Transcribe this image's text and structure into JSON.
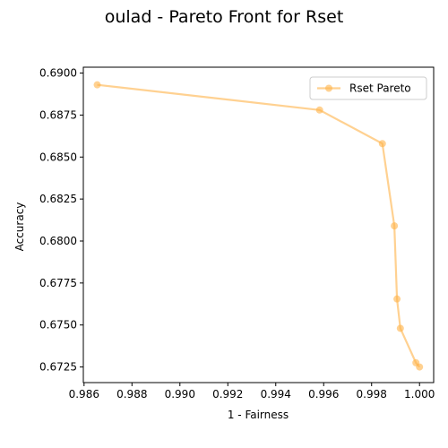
{
  "chart_data": {
    "type": "line",
    "title": "oulad - Pareto Front for Rset",
    "xlabel": "1 - Fairness",
    "ylabel": "Accuracy",
    "xlim": [
      0.98597,
      1.00059
    ],
    "ylim": [
      0.67157,
      0.69035
    ],
    "xticks": [
      0.986,
      0.988,
      0.99,
      0.992,
      0.994,
      0.996,
      0.998,
      1.0
    ],
    "xtick_labels": [
      "0.986",
      "0.988",
      "0.990",
      "0.992",
      "0.994",
      "0.996",
      "0.998",
      "1.000"
    ],
    "yticks": [
      0.6725,
      0.675,
      0.6775,
      0.68,
      0.6825,
      0.685,
      0.6875,
      0.69
    ],
    "ytick_labels": [
      "0.6725",
      "0.6750",
      "0.6775",
      "0.6800",
      "0.6825",
      "0.6850",
      "0.6875",
      "0.6900"
    ],
    "grid": false,
    "legend_position": "upper right",
    "series": [
      {
        "name": "Rset Pareto",
        "color": "#ffb347",
        "marker": "circle",
        "x": [
          0.98655,
          0.99583,
          0.99845,
          0.99895,
          0.99906,
          0.9992,
          0.99985,
          1.0
        ],
        "y": [
          0.6893,
          0.6878,
          0.6858,
          0.6809,
          0.67655,
          0.6748,
          0.67275,
          0.6725
        ]
      }
    ]
  }
}
